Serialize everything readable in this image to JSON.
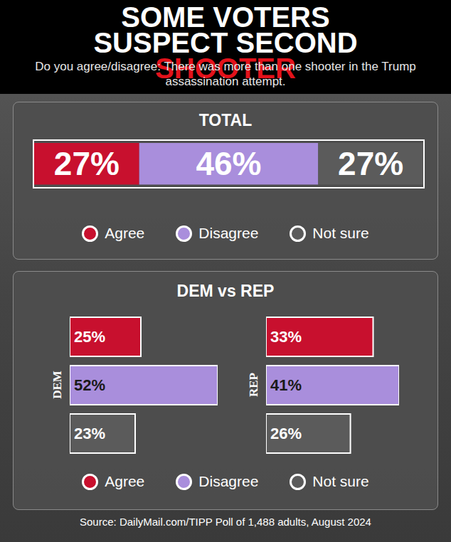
{
  "title": [
    {
      "text": "SOME VOTERS SUSPECT SECOND",
      "color": "#ffffff"
    },
    {
      "text": "SHOOTER",
      "color": "#e3121b"
    }
  ],
  "subtitle": "Do you agree/disagree: There was more than one shooter in the Trump assassination attempt.",
  "group_title": "DEM vs REP",
  "source": "Source: DailyMail.com/TIPP Poll of 1,488 adults, August 2024",
  "chart_data": [
    {
      "type": "bar",
      "title": "TOTAL",
      "orientation": "horizontal",
      "stacked": true,
      "data_labels": true,
      "tick_labels": false,
      "legend": "bottom",
      "categories": [
        null
      ],
      "xlim": [
        0,
        100
      ],
      "series": [
        {
          "name": "Agree",
          "color": "#c8102e",
          "values": [
            27
          ],
          "value_labels": [
            "27%"
          ]
        },
        {
          "name": "Disagree",
          "color": "#a98edc",
          "values": [
            46
          ],
          "value_labels": [
            "46%"
          ]
        },
        {
          "name": "Not sure",
          "color": "#5b5b5b",
          "values": [
            27
          ],
          "value_labels": [
            "27%"
          ]
        }
      ]
    },
    {
      "type": "bar",
      "title": "DEM",
      "orientation": "horizontal",
      "stacked": false,
      "data_labels": true,
      "tick_labels": false,
      "legend": "bottom",
      "categories": [
        null
      ],
      "xlim": [
        0,
        52
      ],
      "series": [
        {
          "name": "Agree",
          "color": "#c8102e",
          "values": [
            25
          ],
          "value_labels": [
            "25%"
          ]
        },
        {
          "name": "Disagree",
          "color": "#a98edc",
          "values": [
            52
          ],
          "value_labels": [
            "52%"
          ]
        },
        {
          "name": "Not sure",
          "color": "#5b5b5b",
          "values": [
            23
          ],
          "value_labels": [
            "23%"
          ]
        }
      ]
    },
    {
      "type": "bar",
      "title": "REP",
      "orientation": "horizontal",
      "stacked": false,
      "data_labels": true,
      "tick_labels": false,
      "legend": "bottom",
      "categories": [
        null
      ],
      "xlim": [
        0,
        41
      ],
      "series": [
        {
          "name": "Agree",
          "color": "#c8102e",
          "values": [
            33
          ],
          "value_labels": [
            "33%"
          ]
        },
        {
          "name": "Disagree",
          "color": "#a98edc",
          "values": [
            41
          ],
          "value_labels": [
            "41%"
          ]
        },
        {
          "name": "Not sure",
          "color": "#5b5b5b",
          "values": [
            26
          ],
          "value_labels": [
            "26%"
          ]
        }
      ]
    }
  ]
}
